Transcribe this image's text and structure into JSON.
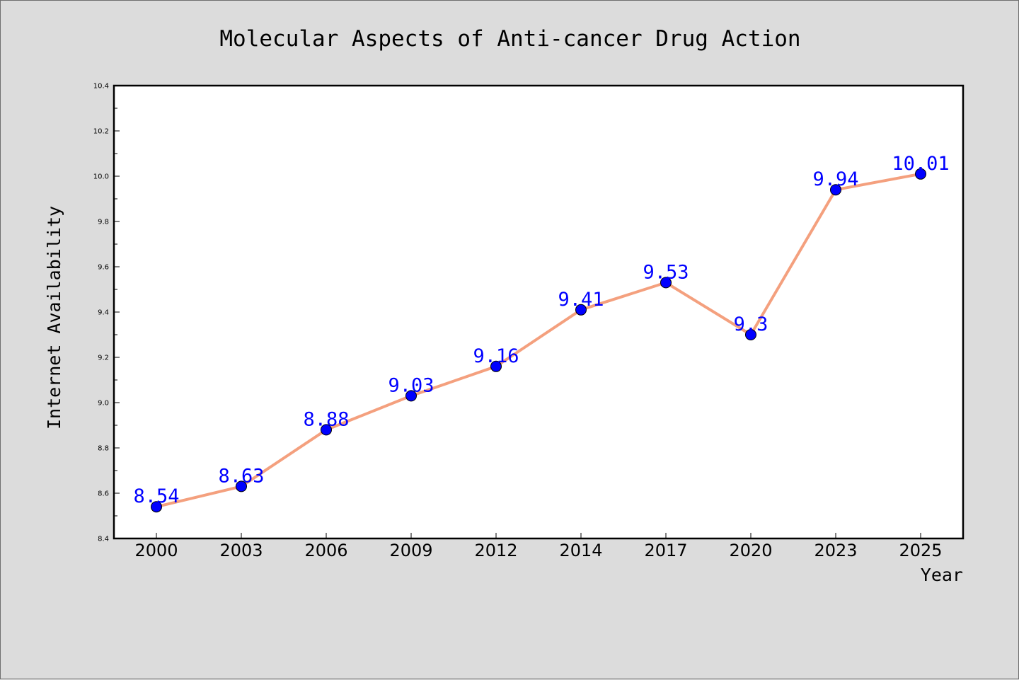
{
  "chart_data": {
    "type": "line",
    "title": "Molecular Aspects of Anti-cancer Drug Action",
    "xlabel": "Year",
    "ylabel": "Internet Availability",
    "categories": [
      "2000",
      "2003",
      "2006",
      "2009",
      "2012",
      "2014",
      "2017",
      "2020",
      "2023",
      "2025"
    ],
    "series": [
      {
        "values": [
          8.54,
          8.63,
          8.88,
          9.03,
          9.16,
          9.41,
          9.53,
          9.3,
          9.94,
          10.01
        ],
        "line_color": "#f4a07e",
        "marker_color": "#0000ff"
      }
    ],
    "data_labels": [
      "8.54",
      "8.63",
      "8.88",
      "9.03",
      "9.16",
      "9.41",
      "9.53",
      "9.3",
      "9.94",
      "10.01"
    ],
    "data_label_color": "#0000ff",
    "ylim": [
      8.4,
      10.4
    ],
    "yticks": [
      "8.4",
      "8.6",
      "8.8",
      "9.0",
      "9.2",
      "9.4",
      "9.6",
      "9.8",
      "10.0",
      "10.2",
      "10.4"
    ],
    "grid": false,
    "background_color": "#dcdcdc",
    "plot_background_color": "#ffffff"
  }
}
